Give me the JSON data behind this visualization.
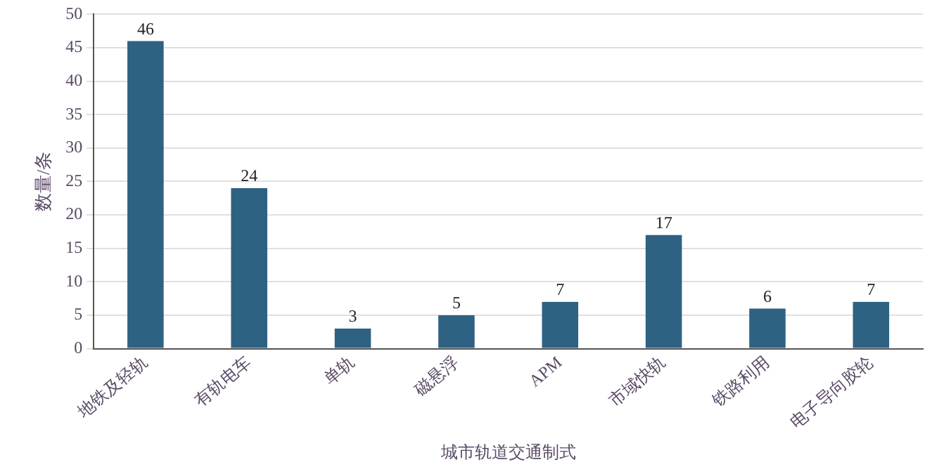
{
  "chart_data": {
    "type": "bar",
    "xlabel": "城市轨道交通制式",
    "ylabel": "数量/条",
    "categories": [
      "地铁及轻轨",
      "有轨电车",
      "单轨",
      "磁悬浮",
      "APM",
      "市域快轨",
      "铁路利用",
      "电子导向胶轮"
    ],
    "values": [
      46,
      24,
      3,
      5,
      7,
      17,
      6,
      7
    ],
    "color": "#2e6283",
    "ylim": [
      0,
      50
    ],
    "yticks": [
      0,
      5,
      10,
      15,
      20,
      25,
      30,
      35,
      40,
      45,
      50
    ],
    "grid": "y",
    "data_labels": true,
    "legend": false
  }
}
